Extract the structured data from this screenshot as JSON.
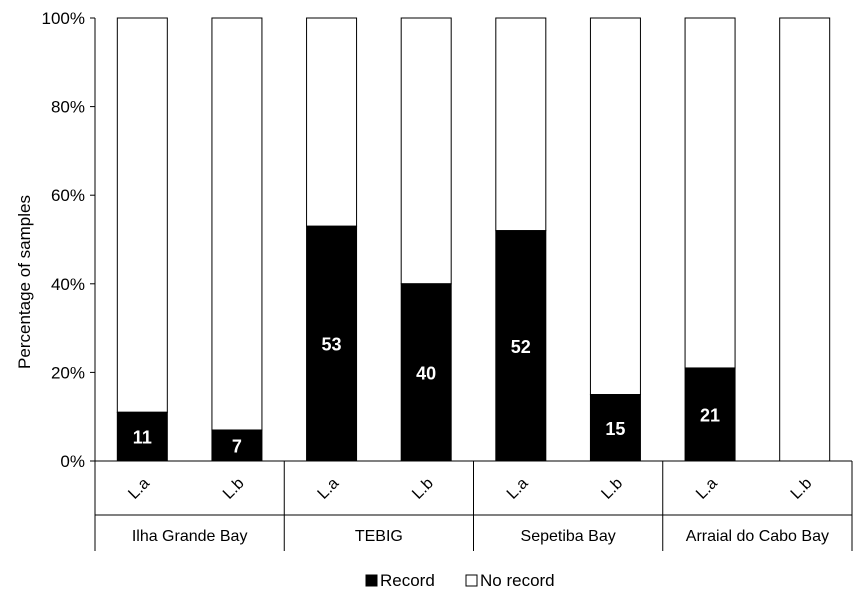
{
  "chart_data": {
    "type": "bar",
    "stacked": true,
    "percent": true,
    "ylabel": "Percentage of samples",
    "ylim": [
      0,
      100
    ],
    "yticks": [
      "0%",
      "20%",
      "40%",
      "60%",
      "80%",
      "100%"
    ],
    "groups": [
      {
        "label": "Ilha Grande Bay",
        "categories": [
          "L.a",
          "L.b"
        ]
      },
      {
        "label": "TEBIG",
        "categories": [
          "L.a",
          "L.b"
        ]
      },
      {
        "label": "Sepetiba Bay",
        "categories": [
          "L.a",
          "L.b"
        ]
      },
      {
        "label": "Arraial do Cabo Bay",
        "categories": [
          "L.a",
          "L.b"
        ]
      }
    ],
    "series": [
      {
        "name": "Record",
        "color": "#000000",
        "values": [
          11,
          7,
          53,
          40,
          52,
          15,
          21,
          0
        ]
      },
      {
        "name": "No record",
        "color": "#ffffff",
        "values": [
          89,
          93,
          47,
          60,
          48,
          85,
          79,
          100
        ]
      }
    ],
    "data_labels": [
      "11",
      "7",
      "53",
      "40",
      "52",
      "15",
      "21",
      ""
    ],
    "legend": {
      "position": "bottom",
      "items": [
        "Record",
        "No record"
      ]
    },
    "grid": false
  }
}
